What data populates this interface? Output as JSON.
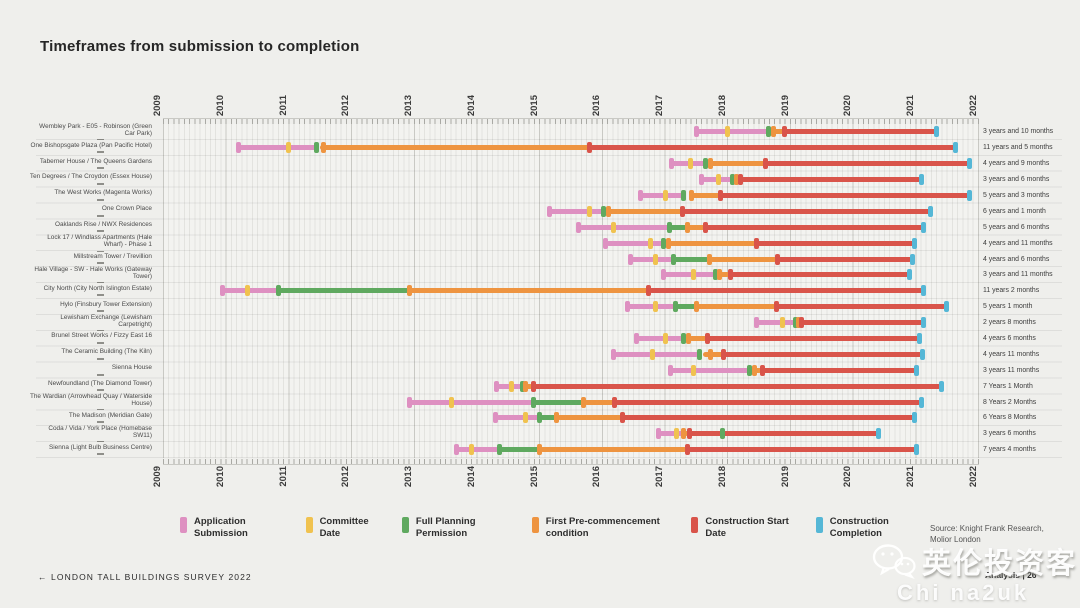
{
  "title": "Timeframes from submission to completion",
  "axis": {
    "years": [
      "2009",
      "2010",
      "2011",
      "2012",
      "2013",
      "2014",
      "2015",
      "2016",
      "2017",
      "2018",
      "2019",
      "2020",
      "2021",
      "2022"
    ]
  },
  "colors": {
    "pink": "#DE90C1",
    "yellow": "#F0C24F",
    "green": "#5FA95F",
    "orange": "#EE9440",
    "red": "#D9544A",
    "blue": "#55B7D6"
  },
  "legend": {
    "items": [
      {
        "label": "Application Submission",
        "color": "pink"
      },
      {
        "label": "Committee Date",
        "color": "yellow"
      },
      {
        "label": "Full Planning Permission",
        "color": "green"
      },
      {
        "label": "First Pre-commencement condition",
        "color": "orange"
      },
      {
        "label": "Construction Start Date",
        "color": "red"
      },
      {
        "label": "Construction Completion",
        "color": "blue"
      }
    ],
    "source": "Source: Knight Frank Research, Molior London"
  },
  "footer": {
    "left": "←  LONDON TALL BUILDINGS SURVEY 2022",
    "right": "Analysis | 26"
  },
  "watermark": {
    "brand": "英伦投资客",
    "handle": "Chi na2uk"
  },
  "chart_data": {
    "type": "bar",
    "title": "Timeframes from submission to completion",
    "x_range": [
      2009,
      2022
    ],
    "x_unit": "year",
    "legend_position": "bottom",
    "grid": true,
    "rows": [
      {
        "name": "Wembley Park - E05 - Robinson (Green Car Park)",
        "duration": "3 years and 10 months",
        "bars": [
          [
            "pink",
            2017.5,
            2018.65
          ],
          [
            "orange",
            2018.7,
            2018.9
          ],
          [
            "red",
            2018.9,
            2021.33
          ]
        ],
        "marks": [
          [
            "pink",
            2017.5
          ],
          [
            "yellow",
            2018.0
          ],
          [
            "green",
            2018.65
          ],
          [
            "orange",
            2018.72
          ],
          [
            "red",
            2018.9
          ],
          [
            "blue",
            2021.33
          ]
        ]
      },
      {
        "name": "One Bishopsgate Plaza (Pan Pacific Hotel)",
        "duration": "11 years and 5 months",
        "bars": [
          [
            "pink",
            2010.2,
            2011.45
          ],
          [
            "orange",
            2011.5,
            2015.8
          ],
          [
            "red",
            2015.8,
            2021.62
          ]
        ],
        "marks": [
          [
            "pink",
            2010.2
          ],
          [
            "yellow",
            2011.0
          ],
          [
            "green",
            2011.45
          ],
          [
            "orange",
            2011.55
          ],
          [
            "red",
            2015.8
          ],
          [
            "blue",
            2021.62
          ]
        ]
      },
      {
        "name": "Taberner House / The Queens Gardens",
        "duration": "4 years and 9 months",
        "bars": [
          [
            "pink",
            2017.1,
            2017.65
          ],
          [
            "orange",
            2017.7,
            2018.6
          ],
          [
            "red",
            2018.6,
            2021.85
          ]
        ],
        "marks": [
          [
            "pink",
            2017.1
          ],
          [
            "yellow",
            2017.4
          ],
          [
            "green",
            2017.65
          ],
          [
            "orange",
            2017.72
          ],
          [
            "red",
            2018.6
          ],
          [
            "blue",
            2021.85
          ]
        ]
      },
      {
        "name": "Ten Degrees / The Croydon (Essex House)",
        "duration": "3 years and 6 months",
        "bars": [
          [
            "pink",
            2017.58,
            2018.08
          ],
          [
            "orange",
            2018.1,
            2018.2
          ],
          [
            "red",
            2018.2,
            2021.08
          ]
        ],
        "marks": [
          [
            "pink",
            2017.58
          ],
          [
            "yellow",
            2017.85
          ],
          [
            "green",
            2018.08
          ],
          [
            "orange",
            2018.13
          ],
          [
            "red",
            2018.2
          ],
          [
            "blue",
            2021.08
          ]
        ]
      },
      {
        "name": "The West Works (Magenta Works)",
        "duration": "5 years and 3 months",
        "bars": [
          [
            "pink",
            2016.6,
            2017.3
          ],
          [
            "orange",
            2017.38,
            2017.88
          ],
          [
            "red",
            2017.88,
            2021.85
          ]
        ],
        "marks": [
          [
            "pink",
            2016.6
          ],
          [
            "yellow",
            2017.0
          ],
          [
            "green",
            2017.3
          ],
          [
            "orange",
            2017.42
          ],
          [
            "red",
            2017.88
          ],
          [
            "blue",
            2021.85
          ]
        ]
      },
      {
        "name": "One Crown Place",
        "duration": "6 years and 1 month",
        "bars": [
          [
            "pink",
            2015.15,
            2016.02
          ],
          [
            "orange",
            2016.06,
            2017.28
          ],
          [
            "red",
            2017.28,
            2021.23
          ]
        ],
        "marks": [
          [
            "pink",
            2015.15
          ],
          [
            "yellow",
            2015.8
          ],
          [
            "green",
            2016.02
          ],
          [
            "orange",
            2016.1
          ],
          [
            "red",
            2017.28
          ],
          [
            "blue",
            2021.23
          ]
        ]
      },
      {
        "name": "Oaklands Rise / NWX Residences",
        "duration": "5 years and 6 months",
        "bars": [
          [
            "pink",
            2015.62,
            2017.07
          ],
          [
            "green",
            2017.07,
            2017.35
          ],
          [
            "orange",
            2017.35,
            2017.64
          ],
          [
            "red",
            2017.64,
            2021.12
          ]
        ],
        "marks": [
          [
            "pink",
            2015.62
          ],
          [
            "yellow",
            2016.17
          ],
          [
            "green",
            2017.07
          ],
          [
            "orange",
            2017.35
          ],
          [
            "red",
            2017.64
          ],
          [
            "blue",
            2021.12
          ]
        ]
      },
      {
        "name": "Lock 17 / Windlass Apartments (Hale Wharf) - Phase 1",
        "duration": "4 years and 11 months",
        "bars": [
          [
            "pink",
            2016.05,
            2016.98
          ],
          [
            "orange",
            2017.03,
            2018.45
          ],
          [
            "red",
            2018.45,
            2020.97
          ]
        ],
        "marks": [
          [
            "pink",
            2016.05
          ],
          [
            "yellow",
            2016.76
          ],
          [
            "green",
            2016.98
          ],
          [
            "orange",
            2017.05
          ],
          [
            "red",
            2018.45
          ],
          [
            "blue",
            2020.97
          ]
        ]
      },
      {
        "name": "Millstream Tower / Trevillion",
        "duration": "4 years and 6 months",
        "bars": [
          [
            "pink",
            2016.44,
            2017.13
          ],
          [
            "green",
            2017.13,
            2017.7
          ],
          [
            "orange",
            2017.7,
            2018.79
          ],
          [
            "red",
            2018.79,
            2020.94
          ]
        ],
        "marks": [
          [
            "pink",
            2016.44
          ],
          [
            "yellow",
            2016.84
          ],
          [
            "green",
            2017.13
          ],
          [
            "orange",
            2017.7
          ],
          [
            "red",
            2018.79
          ],
          [
            "blue",
            2020.94
          ]
        ]
      },
      {
        "name": "Hale Village - SW - Hale Works (Gateway Tower)",
        "duration": "3 years and 11 months",
        "bars": [
          [
            "pink",
            2016.97,
            2017.8
          ],
          [
            "orange",
            2017.84,
            2018.04
          ],
          [
            "red",
            2018.04,
            2020.89
          ]
        ],
        "marks": [
          [
            "pink",
            2016.97
          ],
          [
            "yellow",
            2017.45
          ],
          [
            "green",
            2017.8
          ],
          [
            "orange",
            2017.87
          ],
          [
            "red",
            2018.04
          ],
          [
            "blue",
            2020.89
          ]
        ]
      },
      {
        "name": "City North (City North Islington Estate)",
        "duration": "11 years 2 months",
        "bars": [
          [
            "pink",
            2009.94,
            2010.84
          ],
          [
            "green",
            2010.84,
            2012.92
          ],
          [
            "orange",
            2012.92,
            2016.74
          ],
          [
            "red",
            2016.74,
            2021.11
          ]
        ],
        "marks": [
          [
            "pink",
            2009.94
          ],
          [
            "yellow",
            2010.35
          ],
          [
            "green",
            2010.84
          ],
          [
            "orange",
            2012.92
          ],
          [
            "red",
            2016.74
          ],
          [
            "blue",
            2021.11
          ]
        ]
      },
      {
        "name": "Hylo (Finsbury Tower Extension)",
        "duration": "5 years 1 month",
        "bars": [
          [
            "pink",
            2016.4,
            2017.17
          ],
          [
            "green",
            2017.17,
            2017.5
          ],
          [
            "orange",
            2017.5,
            2018.77
          ],
          [
            "red",
            2018.77,
            2021.48
          ]
        ],
        "marks": [
          [
            "pink",
            2016.4
          ],
          [
            "yellow",
            2016.85
          ],
          [
            "green",
            2017.17
          ],
          [
            "orange",
            2017.5
          ],
          [
            "red",
            2018.77
          ],
          [
            "blue",
            2021.48
          ]
        ]
      },
      {
        "name": "Lewisham Exchange (Lewisham Carpetright)",
        "duration": "2 years 8 months",
        "bars": [
          [
            "pink",
            2018.45,
            2019.08
          ],
          [
            "orange",
            2019.1,
            2019.18
          ],
          [
            "red",
            2019.18,
            2021.12
          ]
        ],
        "marks": [
          [
            "pink",
            2018.45
          ],
          [
            "yellow",
            2018.87
          ],
          [
            "green",
            2019.08
          ],
          [
            "orange",
            2019.12
          ],
          [
            "red",
            2019.18
          ],
          [
            "blue",
            2021.12
          ]
        ]
      },
      {
        "name": "Brunel Street Works / Fizzy East 16",
        "duration": "4 years 6 months",
        "bars": [
          [
            "pink",
            2016.55,
            2017.3
          ],
          [
            "orange",
            2017.34,
            2017.67
          ],
          [
            "red",
            2017.67,
            2021.05
          ]
        ],
        "marks": [
          [
            "pink",
            2016.55
          ],
          [
            "yellow",
            2017.0
          ],
          [
            "green",
            2017.3
          ],
          [
            "orange",
            2017.37
          ],
          [
            "red",
            2017.67
          ],
          [
            "blue",
            2021.05
          ]
        ]
      },
      {
        "name": "The Ceramic Building (The Kiln)",
        "duration": "4 years 11 months",
        "bars": [
          [
            "pink",
            2016.18,
            2017.55
          ],
          [
            "orange",
            2017.6,
            2017.93
          ],
          [
            "red",
            2017.93,
            2021.1
          ]
        ],
        "marks": [
          [
            "pink",
            2016.18
          ],
          [
            "yellow",
            2016.8
          ],
          [
            "green",
            2017.55
          ],
          [
            "orange",
            2017.73
          ],
          [
            "red",
            2017.93
          ],
          [
            "blue",
            2021.1
          ]
        ]
      },
      {
        "name": "Sienna House",
        "duration": "3 years 11 months",
        "bars": [
          [
            "pink",
            2017.08,
            2018.35
          ],
          [
            "orange",
            2018.38,
            2018.55
          ],
          [
            "red",
            2018.55,
            2021.0
          ]
        ],
        "marks": [
          [
            "pink",
            2017.08
          ],
          [
            "yellow",
            2017.45
          ],
          [
            "green",
            2018.35
          ],
          [
            "orange",
            2018.42
          ],
          [
            "red",
            2018.55
          ],
          [
            "blue",
            2021.0
          ]
        ]
      },
      {
        "name": "Newfoundland (The Diamond Tower)",
        "duration": "7 Years 1 Month",
        "bars": [
          [
            "pink",
            2014.32,
            2014.72
          ],
          [
            "orange",
            2014.75,
            2014.9
          ],
          [
            "red",
            2014.9,
            2021.4
          ]
        ],
        "marks": [
          [
            "pink",
            2014.32
          ],
          [
            "yellow",
            2014.55
          ],
          [
            "green",
            2014.72
          ],
          [
            "orange",
            2014.78
          ],
          [
            "red",
            2014.9
          ],
          [
            "blue",
            2021.4
          ]
        ]
      },
      {
        "name": "The Wardian (Arrowhead Quay / Waterside House)",
        "duration": "8 Years 2 Months",
        "bars": [
          [
            "pink",
            2012.92,
            2014.9
          ],
          [
            "green",
            2014.9,
            2015.7
          ],
          [
            "orange",
            2015.7,
            2016.2
          ],
          [
            "red",
            2016.2,
            2021.08
          ]
        ],
        "marks": [
          [
            "pink",
            2012.92
          ],
          [
            "yellow",
            2013.6
          ],
          [
            "green",
            2014.9
          ],
          [
            "orange",
            2015.7
          ],
          [
            "red",
            2016.2
          ],
          [
            "blue",
            2021.08
          ]
        ]
      },
      {
        "name": "The Madison (Meridian Gate)",
        "duration": "6 Years 8 Months",
        "bars": [
          [
            "pink",
            2014.3,
            2015.0
          ],
          [
            "green",
            2015.0,
            2015.27
          ],
          [
            "orange",
            2015.27,
            2016.32
          ],
          [
            "red",
            2016.32,
            2020.97
          ]
        ],
        "marks": [
          [
            "pink",
            2014.3
          ],
          [
            "yellow",
            2014.78
          ],
          [
            "green",
            2015.0
          ],
          [
            "orange",
            2015.27
          ],
          [
            "red",
            2016.32
          ],
          [
            "blue",
            2020.97
          ]
        ]
      },
      {
        "name": "Coda / Vida / York Place (Homebase SW11)",
        "duration": "3 years 6 months",
        "bars": [
          [
            "pink",
            2016.9,
            2017.3
          ],
          [
            "orange",
            2017.3,
            2017.38
          ],
          [
            "red",
            2017.38,
            2020.4
          ]
        ],
        "marks": [
          [
            "pink",
            2016.9
          ],
          [
            "yellow",
            2017.18
          ],
          [
            "orange",
            2017.3
          ],
          [
            "red",
            2017.38
          ],
          [
            "green",
            2017.92
          ],
          [
            "blue",
            2020.4
          ]
        ]
      },
      {
        "name": "Sienna (Light Bulb Business Centre)",
        "duration": "7 years 4 months",
        "bars": [
          [
            "pink",
            2013.68,
            2014.36
          ],
          [
            "green",
            2014.36,
            2015.0
          ],
          [
            "orange",
            2015.0,
            2017.35
          ],
          [
            "red",
            2017.35,
            2021.01
          ]
        ],
        "marks": [
          [
            "pink",
            2013.68
          ],
          [
            "yellow",
            2013.92
          ],
          [
            "green",
            2014.36
          ],
          [
            "orange",
            2015.0
          ],
          [
            "red",
            2017.35
          ],
          [
            "blue",
            2021.01
          ]
        ]
      }
    ]
  }
}
